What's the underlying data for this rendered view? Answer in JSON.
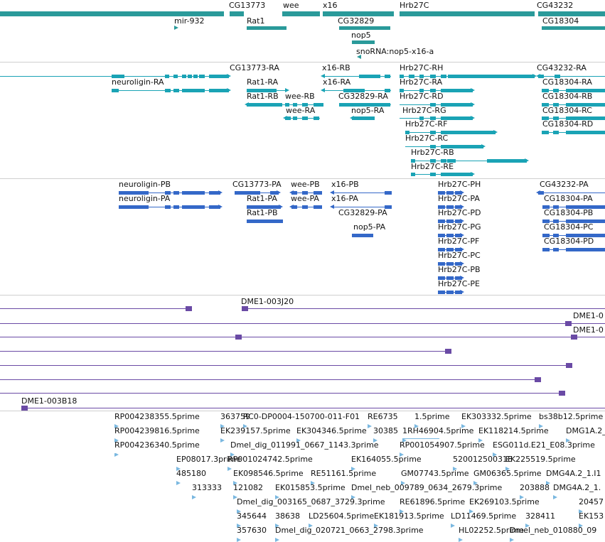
{
  "colors": {
    "gene": "#2a9a9a",
    "transcript": "#1aa3b5",
    "protein": "#3468c8",
    "clone": "#6a4aa5",
    "est": "#7ab8e0",
    "separator": "#cfcfcf"
  },
  "tracks": {
    "genes": [
      {
        "label": "CG13773"
      },
      {
        "label": "wee"
      },
      {
        "label": "x16"
      },
      {
        "label": "Hrb27C"
      },
      {
        "label": "CG43232"
      },
      {
        "label": "mir-932"
      },
      {
        "label": "Rat1"
      },
      {
        "label": "CG32829"
      },
      {
        "label": "CG18304"
      },
      {
        "label": "nop5"
      },
      {
        "label": "snoRNA:nop5-x16-a"
      }
    ],
    "transcripts": [
      {
        "label": "CG13773-RA"
      },
      {
        "label": "x16-RB"
      },
      {
        "label": "Hrb27C-RH"
      },
      {
        "label": "CG43232-RA"
      },
      {
        "label": "neuroligin-RA"
      },
      {
        "label": "Rat1-RA"
      },
      {
        "label": "x16-RA"
      },
      {
        "label": "Hrb27C-RA"
      },
      {
        "label": "CG18304-RA"
      },
      {
        "label": "Rat1-RB"
      },
      {
        "label": "wee-RB"
      },
      {
        "label": "CG32829-RA"
      },
      {
        "label": "Hrb27C-RD"
      },
      {
        "label": "CG18304-RB"
      },
      {
        "label": "wee-RA"
      },
      {
        "label": "nop5-RA"
      },
      {
        "label": "Hrb27C-RG"
      },
      {
        "label": "CG18304-RC"
      },
      {
        "label": "Hrb27C-RF"
      },
      {
        "label": "CG18304-RD"
      },
      {
        "label": "Hrb27C-RC"
      },
      {
        "label": "Hrb27C-RB"
      },
      {
        "label": "Hrb27C-RE"
      }
    ],
    "proteins": [
      {
        "label": "neuroligin-PB"
      },
      {
        "label": "CG13773-PA"
      },
      {
        "label": "wee-PB"
      },
      {
        "label": "x16-PB"
      },
      {
        "label": "Hrb27C-PH"
      },
      {
        "label": "CG43232-PA"
      },
      {
        "label": "neuroligin-PA"
      },
      {
        "label": "Rat1-PA"
      },
      {
        "label": "wee-PA"
      },
      {
        "label": "x16-PA"
      },
      {
        "label": "Hrb27C-PA"
      },
      {
        "label": "CG18304-PA"
      },
      {
        "label": "Rat1-PB"
      },
      {
        "label": "CG32829-PA"
      },
      {
        "label": "Hrb27C-PD"
      },
      {
        "label": "CG18304-PB"
      },
      {
        "label": "nop5-PA"
      },
      {
        "label": "Hrb27C-PG"
      },
      {
        "label": "CG18304-PC"
      },
      {
        "label": "Hrb27C-PF"
      },
      {
        "label": "CG18304-PD"
      },
      {
        "label": "Hrb27C-PC"
      },
      {
        "label": "Hrb27C-PB"
      },
      {
        "label": "Hrb27C-PE"
      }
    ],
    "clones": [
      {
        "label": "DME1-003J20"
      },
      {
        "label": "DME1-0"
      },
      {
        "label": "DME1-0"
      },
      {
        "label": "DME1-003B18"
      }
    ],
    "ests": [
      {
        "label": "RP004238355.5prime"
      },
      {
        "label": "363759"
      },
      {
        "label": "RC0-DP0004-150700-011-F01"
      },
      {
        "label": "RE6735"
      },
      {
        "label": "1.5prime"
      },
      {
        "label": "EK303332.5prime"
      },
      {
        "label": "bs38b12.5prime"
      },
      {
        "label": "RP004239816.5prime"
      },
      {
        "label": "EK239157.5prime"
      },
      {
        "label": "EK304346.5prime"
      },
      {
        "label": "30385"
      },
      {
        "label": "1RH46904.5prime"
      },
      {
        "label": "EK118214.5prime"
      },
      {
        "label": "DMG1A.2_"
      },
      {
        "label": "RP004236340.5prime"
      },
      {
        "label": "Dmel_dig_011991_0667_1143.3prime"
      },
      {
        "label": "RP001054907.5prime"
      },
      {
        "label": "ESG011d.E21_E08.3prime"
      },
      {
        "label": "EP08017.3prime"
      },
      {
        "label": "RP001024742.5prime"
      },
      {
        "label": "EK164055.5prime"
      },
      {
        "label": "520012500318"
      },
      {
        "label": "EK225519.5prime"
      },
      {
        "label": "485180"
      },
      {
        "label": "EK098546.5prime"
      },
      {
        "label": "RE51161.5prime"
      },
      {
        "label": "GM07743.5prime"
      },
      {
        "label": "GM06365.5prime"
      },
      {
        "label": "DMG4A.2_1.I1"
      },
      {
        "label": "313333"
      },
      {
        "label": "121082"
      },
      {
        "label": "EK015853.5prime"
      },
      {
        "label": "Dmel_neb_009789_0634_2679.3prime"
      },
      {
        "label": "203888"
      },
      {
        "label": "DMG4A.2_1."
      },
      {
        "label": "Dmel_dig_003165_0687_3729.3prime"
      },
      {
        "label": "RE61896.5prime"
      },
      {
        "label": "EK269103.5prime"
      },
      {
        "label": "20457"
      },
      {
        "label": "345644"
      },
      {
        "label": "38638"
      },
      {
        "label": "LD25604.5prime"
      },
      {
        "label": "EK181913.5prime"
      },
      {
        "label": "LD11469.5prime"
      },
      {
        "label": "328411"
      },
      {
        "label": "EK153"
      },
      {
        "label": "357630"
      },
      {
        "label": "Dmel_dig_020721_0663_2798.3prime"
      },
      {
        "label": "HL02252.5prime"
      },
      {
        "label": "Dmel_neb_010880_09"
      }
    ]
  }
}
